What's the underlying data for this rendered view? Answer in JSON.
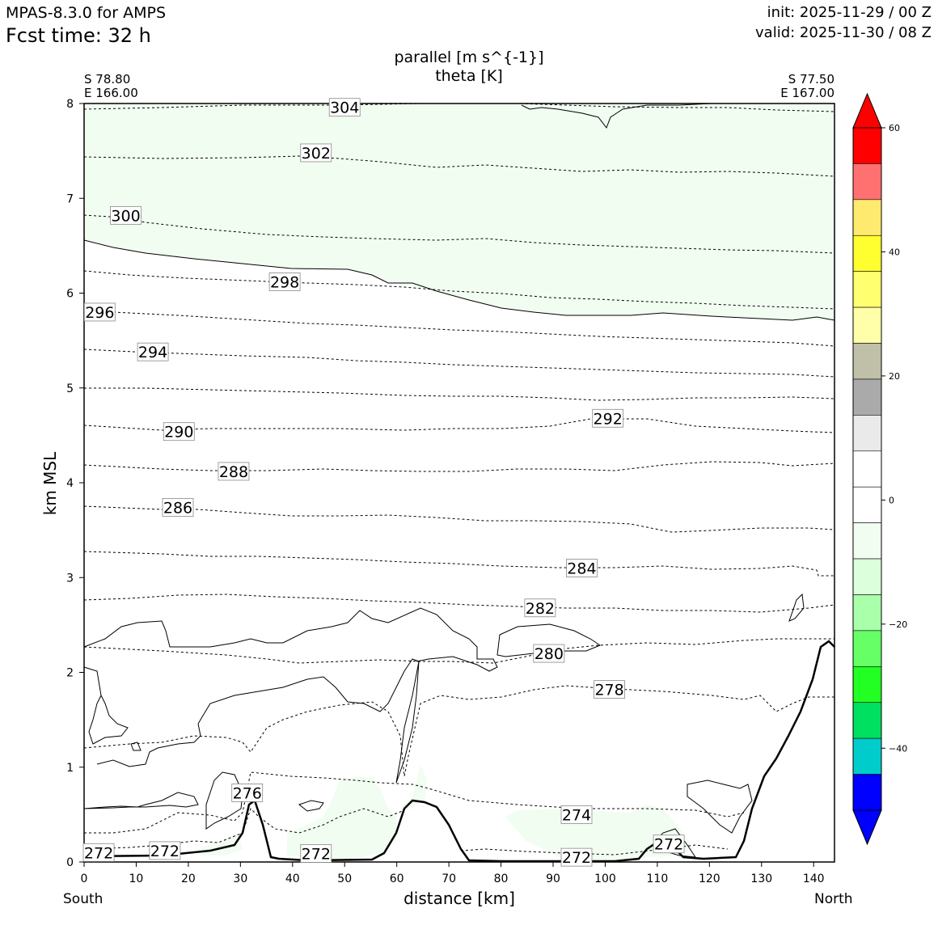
{
  "header": {
    "model": "MPAS-8.3.0 for AMPS",
    "forecast_time": "Fcst time:   32 h",
    "init": "init: 2025-11-29 / 00 Z",
    "valid": "valid: 2025-11-30 / 08 Z"
  },
  "chart_data": {
    "type": "contour",
    "title_line1": "parallel [m s^{-1}]",
    "title_line2": "theta [K]",
    "xlabel": "distance [km]",
    "ylabel": "km MSL",
    "xlim": [
      0,
      144
    ],
    "ylim": [
      0,
      8
    ],
    "x_ticks": [
      0,
      10,
      20,
      30,
      40,
      50,
      60,
      70,
      80,
      90,
      100,
      110,
      120,
      130,
      140
    ],
    "y_ticks": [
      0,
      1,
      2,
      3,
      4,
      5,
      6,
      7,
      8
    ],
    "endpoints": {
      "left_lat": "S 78.80",
      "left_lon": "E 166.00",
      "right_lat": "S 77.50",
      "right_lon": "E 167.00",
      "left_dir": "South",
      "right_dir": "North"
    },
    "theta_labels": [
      {
        "text": "304",
        "x": 50,
        "y": 7.96
      },
      {
        "text": "302",
        "x": 44.5,
        "y": 7.48
      },
      {
        "text": "300",
        "x": 8,
        "y": 6.82
      },
      {
        "text": "298",
        "x": 38.5,
        "y": 6.12
      },
      {
        "text": "296",
        "x": 3,
        "y": 5.8
      },
      {
        "text": "294",
        "x": 13.2,
        "y": 5.38
      },
      {
        "text": "292",
        "x": 100.5,
        "y": 4.68
      },
      {
        "text": "290",
        "x": 18.2,
        "y": 4.54
      },
      {
        "text": "288",
        "x": 28.7,
        "y": 4.12
      },
      {
        "text": "286",
        "x": 18,
        "y": 3.74
      },
      {
        "text": "284",
        "x": 95.5,
        "y": 3.1
      },
      {
        "text": "282",
        "x": 87.5,
        "y": 2.68
      },
      {
        "text": "280",
        "x": 89.2,
        "y": 2.2
      },
      {
        "text": "278",
        "x": 100.8,
        "y": 1.82
      },
      {
        "text": "276",
        "x": 31.3,
        "y": 0.73
      },
      {
        "text": "274",
        "x": 94.5,
        "y": 0.5
      },
      {
        "text": "272",
        "x": 112.2,
        "y": 0.19
      },
      {
        "text": "272",
        "x": 2.8,
        "y": 0.1
      },
      {
        "text": "272",
        "x": 15.5,
        "y": 0.12
      },
      {
        "text": "272",
        "x": 44.5,
        "y": 0.09
      },
      {
        "text": "272",
        "x": 94.5,
        "y": 0.05
      }
    ],
    "colorbar": {
      "ticks": [
        60,
        40,
        20,
        0,
        -20,
        -40
      ],
      "tick_labels": [
        "60",
        "40",
        "20",
        "0",
        "−20",
        "−40"
      ],
      "range": [
        -50,
        60
      ],
      "colors": [
        "#ff0000",
        "#ff7070",
        "#ffea70",
        "#ffff30",
        "#ffff70",
        "#ffffaa",
        "#c0c0a8",
        "#aaaaaa",
        "#eaeaea",
        "#ffffff",
        "#ffffff",
        "#f2fdf2",
        "#dcffdc",
        "#aaffaa",
        "#66ff66",
        "#22ff22",
        "#00e060",
        "#00cccc",
        "#0000ff"
      ],
      "over_color": "#ff0000",
      "under_color": "#0000ff"
    }
  }
}
